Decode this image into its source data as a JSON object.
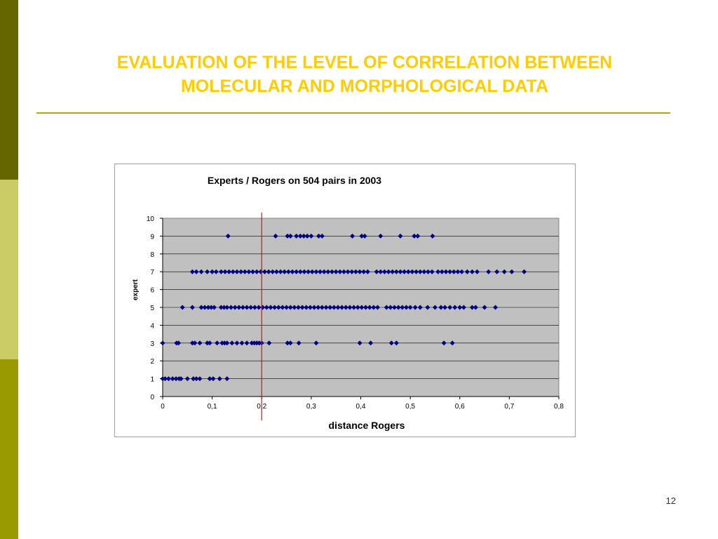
{
  "slide": {
    "title_line1": "EVALUATION OF THE LEVEL OF CORRELATION BETWEEN",
    "title_line2": "MOLECULAR AND MORPHOLOGICAL DATA",
    "page_number": "12"
  },
  "colors": {
    "title": "#ffcc00",
    "sidebar_dark": "#666600",
    "sidebar_light": "#cccc66",
    "sidebar_mid": "#999900",
    "plot_background": "#c0c0c0",
    "marker": "#000080",
    "reference_line": "#ff0000"
  },
  "chart_data": {
    "type": "scatter",
    "title": "Experts / Rogers on 504 pairs in 2003",
    "xlabel": "distance Rogers",
    "ylabel": "expert",
    "xlim": [
      0,
      0.8
    ],
    "ylim": [
      0,
      10
    ],
    "x_ticks": [
      "0",
      "0,1",
      "0,2",
      "0,3",
      "0,4",
      "0,5",
      "0,6",
      "0,7",
      "0,8"
    ],
    "y_ticks": [
      "0",
      "1",
      "2",
      "3",
      "4",
      "5",
      "6",
      "7",
      "8",
      "9",
      "10"
    ],
    "grid": "horizontal",
    "marker": "diamond",
    "reference_line_x": 0.2,
    "points": [
      {
        "x": 0.0,
        "y": 1
      },
      {
        "x": 0.005,
        "y": 1
      },
      {
        "x": 0.012,
        "y": 1
      },
      {
        "x": 0.02,
        "y": 1
      },
      {
        "x": 0.027,
        "y": 1
      },
      {
        "x": 0.033,
        "y": 1
      },
      {
        "x": 0.037,
        "y": 1
      },
      {
        "x": 0.05,
        "y": 1
      },
      {
        "x": 0.062,
        "y": 1
      },
      {
        "x": 0.068,
        "y": 1
      },
      {
        "x": 0.075,
        "y": 1
      },
      {
        "x": 0.095,
        "y": 1
      },
      {
        "x": 0.102,
        "y": 1
      },
      {
        "x": 0.115,
        "y": 1
      },
      {
        "x": 0.13,
        "y": 1
      },
      {
        "x": 0.0,
        "y": 3
      },
      {
        "x": 0.028,
        "y": 3
      },
      {
        "x": 0.032,
        "y": 3
      },
      {
        "x": 0.06,
        "y": 3
      },
      {
        "x": 0.065,
        "y": 3
      },
      {
        "x": 0.075,
        "y": 3
      },
      {
        "x": 0.09,
        "y": 3
      },
      {
        "x": 0.095,
        "y": 3
      },
      {
        "x": 0.11,
        "y": 3
      },
      {
        "x": 0.12,
        "y": 3
      },
      {
        "x": 0.125,
        "y": 3
      },
      {
        "x": 0.13,
        "y": 3
      },
      {
        "x": 0.14,
        "y": 3
      },
      {
        "x": 0.15,
        "y": 3
      },
      {
        "x": 0.16,
        "y": 3
      },
      {
        "x": 0.17,
        "y": 3
      },
      {
        "x": 0.18,
        "y": 3
      },
      {
        "x": 0.185,
        "y": 3
      },
      {
        "x": 0.19,
        "y": 3
      },
      {
        "x": 0.195,
        "y": 3
      },
      {
        "x": 0.2,
        "y": 3
      },
      {
        "x": 0.215,
        "y": 3
      },
      {
        "x": 0.252,
        "y": 3
      },
      {
        "x": 0.258,
        "y": 3
      },
      {
        "x": 0.275,
        "y": 3
      },
      {
        "x": 0.31,
        "y": 3
      },
      {
        "x": 0.398,
        "y": 3
      },
      {
        "x": 0.42,
        "y": 3
      },
      {
        "x": 0.462,
        "y": 3
      },
      {
        "x": 0.472,
        "y": 3
      },
      {
        "x": 0.568,
        "y": 3
      },
      {
        "x": 0.585,
        "y": 3
      },
      {
        "x": 0.04,
        "y": 5
      },
      {
        "x": 0.06,
        "y": 5
      },
      {
        "x": 0.078,
        "y": 5
      },
      {
        "x": 0.085,
        "y": 5
      },
      {
        "x": 0.092,
        "y": 5
      },
      {
        "x": 0.098,
        "y": 5
      },
      {
        "x": 0.104,
        "y": 5
      },
      {
        "x": 0.118,
        "y": 5
      },
      {
        "x": 0.124,
        "y": 5
      },
      {
        "x": 0.13,
        "y": 5
      },
      {
        "x": 0.138,
        "y": 5
      },
      {
        "x": 0.146,
        "y": 5
      },
      {
        "x": 0.154,
        "y": 5
      },
      {
        "x": 0.162,
        "y": 5
      },
      {
        "x": 0.17,
        "y": 5
      },
      {
        "x": 0.178,
        "y": 5
      },
      {
        "x": 0.186,
        "y": 5
      },
      {
        "x": 0.194,
        "y": 5
      },
      {
        "x": 0.202,
        "y": 5
      },
      {
        "x": 0.21,
        "y": 5
      },
      {
        "x": 0.218,
        "y": 5
      },
      {
        "x": 0.226,
        "y": 5
      },
      {
        "x": 0.234,
        "y": 5
      },
      {
        "x": 0.242,
        "y": 5
      },
      {
        "x": 0.25,
        "y": 5
      },
      {
        "x": 0.258,
        "y": 5
      },
      {
        "x": 0.266,
        "y": 5
      },
      {
        "x": 0.274,
        "y": 5
      },
      {
        "x": 0.282,
        "y": 5
      },
      {
        "x": 0.29,
        "y": 5
      },
      {
        "x": 0.298,
        "y": 5
      },
      {
        "x": 0.306,
        "y": 5
      },
      {
        "x": 0.314,
        "y": 5
      },
      {
        "x": 0.322,
        "y": 5
      },
      {
        "x": 0.33,
        "y": 5
      },
      {
        "x": 0.338,
        "y": 5
      },
      {
        "x": 0.346,
        "y": 5
      },
      {
        "x": 0.354,
        "y": 5
      },
      {
        "x": 0.362,
        "y": 5
      },
      {
        "x": 0.37,
        "y": 5
      },
      {
        "x": 0.378,
        "y": 5
      },
      {
        "x": 0.386,
        "y": 5
      },
      {
        "x": 0.394,
        "y": 5
      },
      {
        "x": 0.402,
        "y": 5
      },
      {
        "x": 0.41,
        "y": 5
      },
      {
        "x": 0.418,
        "y": 5
      },
      {
        "x": 0.426,
        "y": 5
      },
      {
        "x": 0.434,
        "y": 5
      },
      {
        "x": 0.452,
        "y": 5
      },
      {
        "x": 0.46,
        "y": 5
      },
      {
        "x": 0.468,
        "y": 5
      },
      {
        "x": 0.476,
        "y": 5
      },
      {
        "x": 0.484,
        "y": 5
      },
      {
        "x": 0.492,
        "y": 5
      },
      {
        "x": 0.5,
        "y": 5
      },
      {
        "x": 0.51,
        "y": 5
      },
      {
        "x": 0.52,
        "y": 5
      },
      {
        "x": 0.535,
        "y": 5
      },
      {
        "x": 0.55,
        "y": 5
      },
      {
        "x": 0.562,
        "y": 5
      },
      {
        "x": 0.57,
        "y": 5
      },
      {
        "x": 0.58,
        "y": 5
      },
      {
        "x": 0.59,
        "y": 5
      },
      {
        "x": 0.6,
        "y": 5
      },
      {
        "x": 0.608,
        "y": 5
      },
      {
        "x": 0.625,
        "y": 5
      },
      {
        "x": 0.632,
        "y": 5
      },
      {
        "x": 0.65,
        "y": 5
      },
      {
        "x": 0.672,
        "y": 5
      },
      {
        "x": 0.06,
        "y": 7
      },
      {
        "x": 0.068,
        "y": 7
      },
      {
        "x": 0.078,
        "y": 7
      },
      {
        "x": 0.09,
        "y": 7
      },
      {
        "x": 0.1,
        "y": 7
      },
      {
        "x": 0.108,
        "y": 7
      },
      {
        "x": 0.118,
        "y": 7
      },
      {
        "x": 0.126,
        "y": 7
      },
      {
        "x": 0.134,
        "y": 7
      },
      {
        "x": 0.142,
        "y": 7
      },
      {
        "x": 0.15,
        "y": 7
      },
      {
        "x": 0.158,
        "y": 7
      },
      {
        "x": 0.166,
        "y": 7
      },
      {
        "x": 0.174,
        "y": 7
      },
      {
        "x": 0.182,
        "y": 7
      },
      {
        "x": 0.19,
        "y": 7
      },
      {
        "x": 0.198,
        "y": 7
      },
      {
        "x": 0.206,
        "y": 7
      },
      {
        "x": 0.214,
        "y": 7
      },
      {
        "x": 0.222,
        "y": 7
      },
      {
        "x": 0.23,
        "y": 7
      },
      {
        "x": 0.238,
        "y": 7
      },
      {
        "x": 0.246,
        "y": 7
      },
      {
        "x": 0.254,
        "y": 7
      },
      {
        "x": 0.262,
        "y": 7
      },
      {
        "x": 0.27,
        "y": 7
      },
      {
        "x": 0.278,
        "y": 7
      },
      {
        "x": 0.286,
        "y": 7
      },
      {
        "x": 0.294,
        "y": 7
      },
      {
        "x": 0.302,
        "y": 7
      },
      {
        "x": 0.31,
        "y": 7
      },
      {
        "x": 0.318,
        "y": 7
      },
      {
        "x": 0.326,
        "y": 7
      },
      {
        "x": 0.334,
        "y": 7
      },
      {
        "x": 0.342,
        "y": 7
      },
      {
        "x": 0.35,
        "y": 7
      },
      {
        "x": 0.358,
        "y": 7
      },
      {
        "x": 0.366,
        "y": 7
      },
      {
        "x": 0.374,
        "y": 7
      },
      {
        "x": 0.382,
        "y": 7
      },
      {
        "x": 0.39,
        "y": 7
      },
      {
        "x": 0.398,
        "y": 7
      },
      {
        "x": 0.406,
        "y": 7
      },
      {
        "x": 0.414,
        "y": 7
      },
      {
        "x": 0.432,
        "y": 7
      },
      {
        "x": 0.44,
        "y": 7
      },
      {
        "x": 0.448,
        "y": 7
      },
      {
        "x": 0.456,
        "y": 7
      },
      {
        "x": 0.464,
        "y": 7
      },
      {
        "x": 0.472,
        "y": 7
      },
      {
        "x": 0.48,
        "y": 7
      },
      {
        "x": 0.488,
        "y": 7
      },
      {
        "x": 0.496,
        "y": 7
      },
      {
        "x": 0.504,
        "y": 7
      },
      {
        "x": 0.512,
        "y": 7
      },
      {
        "x": 0.52,
        "y": 7
      },
      {
        "x": 0.528,
        "y": 7
      },
      {
        "x": 0.536,
        "y": 7
      },
      {
        "x": 0.544,
        "y": 7
      },
      {
        "x": 0.556,
        "y": 7
      },
      {
        "x": 0.564,
        "y": 7
      },
      {
        "x": 0.572,
        "y": 7
      },
      {
        "x": 0.58,
        "y": 7
      },
      {
        "x": 0.588,
        "y": 7
      },
      {
        "x": 0.596,
        "y": 7
      },
      {
        "x": 0.604,
        "y": 7
      },
      {
        "x": 0.615,
        "y": 7
      },
      {
        "x": 0.625,
        "y": 7
      },
      {
        "x": 0.635,
        "y": 7
      },
      {
        "x": 0.658,
        "y": 7
      },
      {
        "x": 0.675,
        "y": 7
      },
      {
        "x": 0.69,
        "y": 7
      },
      {
        "x": 0.705,
        "y": 7
      },
      {
        "x": 0.73,
        "y": 7
      },
      {
        "x": 0.132,
        "y": 9
      },
      {
        "x": 0.228,
        "y": 9
      },
      {
        "x": 0.252,
        "y": 9
      },
      {
        "x": 0.258,
        "y": 9
      },
      {
        "x": 0.27,
        "y": 9
      },
      {
        "x": 0.278,
        "y": 9
      },
      {
        "x": 0.285,
        "y": 9
      },
      {
        "x": 0.292,
        "y": 9
      },
      {
        "x": 0.3,
        "y": 9
      },
      {
        "x": 0.315,
        "y": 9
      },
      {
        "x": 0.322,
        "y": 9
      },
      {
        "x": 0.383,
        "y": 9
      },
      {
        "x": 0.402,
        "y": 9
      },
      {
        "x": 0.408,
        "y": 9
      },
      {
        "x": 0.44,
        "y": 9
      },
      {
        "x": 0.48,
        "y": 9
      },
      {
        "x": 0.508,
        "y": 9
      },
      {
        "x": 0.515,
        "y": 9
      },
      {
        "x": 0.545,
        "y": 9
      }
    ]
  }
}
